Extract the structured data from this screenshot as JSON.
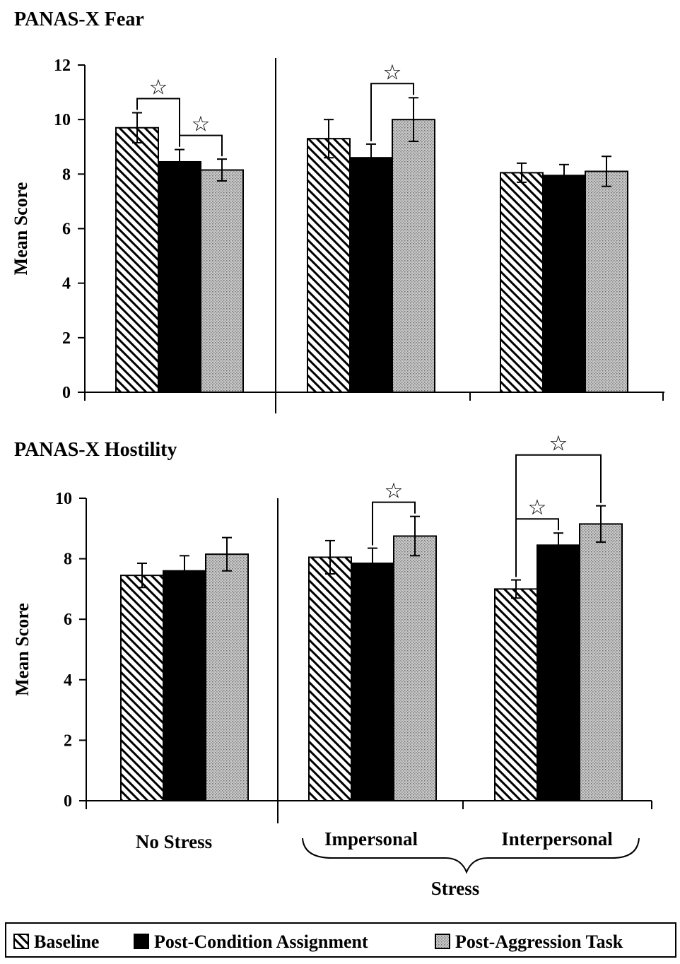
{
  "chart_data": [
    {
      "type": "bar",
      "title": "PANAS-X Fear",
      "ylabel": "Mean Score",
      "ylim": [
        0,
        12
      ],
      "yticks": [
        0,
        2,
        4,
        6,
        8,
        10,
        12
      ],
      "grid": false,
      "categories": [
        "No Stress",
        "Impersonal",
        "Interpersonal"
      ],
      "series": [
        {
          "name": "Baseline",
          "values": [
            9.7,
            9.3,
            8.05
          ],
          "errors": [
            0.55,
            0.7,
            0.35
          ]
        },
        {
          "name": "Post-Condition Assignment",
          "values": [
            8.45,
            8.6,
            7.95
          ],
          "errors": [
            0.45,
            0.5,
            0.4
          ]
        },
        {
          "name": "Post-Aggression Task",
          "values": [
            8.15,
            10.0,
            8.1
          ],
          "errors": [
            0.4,
            0.8,
            0.55
          ]
        }
      ],
      "significance": [
        {
          "category": 0,
          "from": 0,
          "to": 1,
          "level": 1,
          "symbol": "☆"
        },
        {
          "category": 0,
          "from": 1,
          "to": 2,
          "level": 1,
          "symbol": "☆"
        },
        {
          "category": 1,
          "from": 1,
          "to": 2,
          "level": 1,
          "symbol": "☆"
        }
      ]
    },
    {
      "type": "bar",
      "title": "PANAS-X Hostility",
      "ylabel": "Mean Score",
      "ylim": [
        0,
        10
      ],
      "yticks": [
        0,
        2,
        4,
        6,
        8,
        10
      ],
      "grid": false,
      "categories": [
        "No Stress",
        "Impersonal",
        "Interpersonal"
      ],
      "group_label": "Stress",
      "series": [
        {
          "name": "Baseline",
          "values": [
            7.45,
            8.05,
            7.0
          ],
          "errors": [
            0.4,
            0.55,
            0.3
          ]
        },
        {
          "name": "Post-Condition Assignment",
          "values": [
            7.6,
            7.85,
            8.45
          ],
          "errors": [
            0.5,
            0.5,
            0.4
          ]
        },
        {
          "name": "Post-Aggression Task",
          "values": [
            8.15,
            8.75,
            9.15
          ],
          "errors": [
            0.55,
            0.65,
            0.6
          ]
        }
      ],
      "significance": [
        {
          "category": 1,
          "from": 1,
          "to": 2,
          "level": 1,
          "symbol": "☆"
        },
        {
          "category": 2,
          "from": 0,
          "to": 1,
          "level": 1,
          "symbol": "☆"
        },
        {
          "category": 2,
          "from": 0,
          "to": 2,
          "level": 2,
          "symbol": "☆"
        }
      ]
    }
  ],
  "legend": {
    "placement": "bottom",
    "items": [
      "Baseline",
      "Post-Condition Assignment",
      "Post-Aggression Task"
    ]
  }
}
